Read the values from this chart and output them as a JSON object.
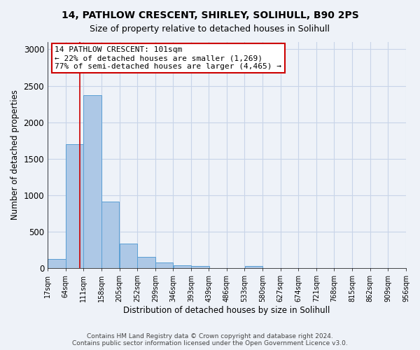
{
  "title1": "14, PATHLOW CRESCENT, SHIRLEY, SOLIHULL, B90 2PS",
  "title2": "Size of property relative to detached houses in Solihull",
  "xlabel": "Distribution of detached houses by size in Solihull",
  "ylabel": "Number of detached properties",
  "bin_edges": [
    17,
    64,
    111,
    158,
    205,
    252,
    299,
    346,
    393,
    439,
    486,
    533,
    580,
    627,
    674,
    721,
    768,
    815,
    862,
    909,
    956
  ],
  "bar_heights": [
    120,
    1700,
    2370,
    910,
    340,
    150,
    75,
    40,
    25,
    0,
    0,
    25,
    0,
    0,
    0,
    0,
    0,
    0,
    0,
    0
  ],
  "bar_color": "#adc8e6",
  "bar_edge_color": "#5a9fd4",
  "property_line_x": 101,
  "property_line_color": "#cc0000",
  "annotation_text_line1": "14 PATHLOW CRESCENT: 101sqm",
  "annotation_text_line2": "← 22% of detached houses are smaller (1,269)",
  "annotation_text_line3": "77% of semi-detached houses are larger (4,465) →",
  "annotation_box_color": "#cc0000",
  "annotation_fill": "white",
  "ylim": [
    0,
    3100
  ],
  "yticks": [
    0,
    500,
    1000,
    1500,
    2000,
    2500,
    3000
  ],
  "tick_labels": [
    "17sqm",
    "64sqm",
    "111sqm",
    "158sqm",
    "205sqm",
    "252sqm",
    "299sqm",
    "346sqm",
    "393sqm",
    "439sqm",
    "486sqm",
    "533sqm",
    "580sqm",
    "627sqm",
    "674sqm",
    "721sqm",
    "768sqm",
    "815sqm",
    "862sqm",
    "909sqm",
    "956sqm"
  ],
  "footer1": "Contains HM Land Registry data © Crown copyright and database right 2024.",
  "footer2": "Contains public sector information licensed under the Open Government Licence v3.0.",
  "background_color": "#eef2f8",
  "grid_color": "#c8d4e8"
}
